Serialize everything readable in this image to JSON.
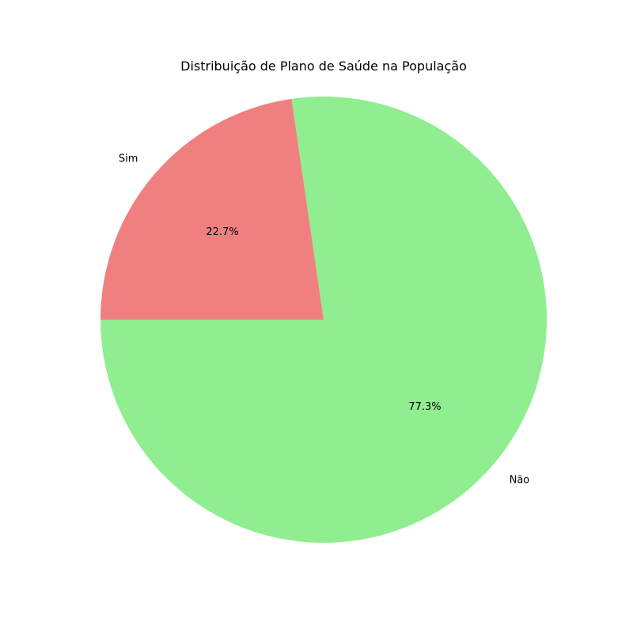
{
  "chart_data": {
    "type": "pie",
    "title": "Distribuição de Plano de Saúde na População",
    "start_angle_deg": 180,
    "direction": "counterclockwise",
    "slices": [
      {
        "label": "Não",
        "value": 77.3,
        "pct_label": "77.3%",
        "color": "#90ee90"
      },
      {
        "label": "Sim",
        "value": 22.7,
        "pct_label": "22.7%",
        "color": "#f08080"
      }
    ]
  }
}
